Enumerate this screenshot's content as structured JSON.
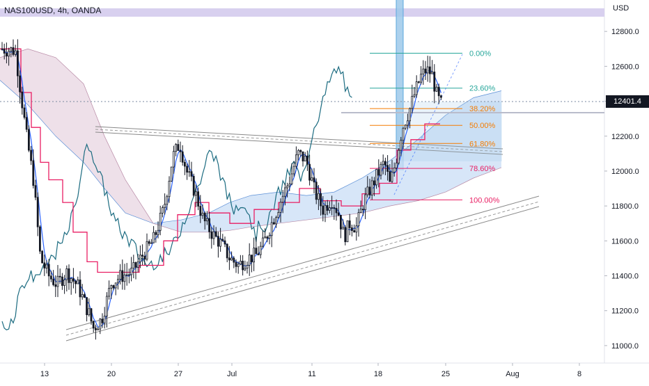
{
  "chart_data": {
    "type": "candlestick",
    "title": "NAS100USD, 4h, OANDA",
    "y_unit": "USD",
    "last_price": "12401.4",
    "ylim": [
      10900,
      12980
    ],
    "y_ticks": [
      "12800.0",
      "12600.0",
      "12400.0",
      "12200.0",
      "12000.0",
      "11800.0",
      "11600.0",
      "11400.0",
      "11200.0",
      "11000.0"
    ],
    "x_ticks": [
      "13",
      "20",
      "27",
      "Jul",
      "11",
      "18",
      "25",
      "Aug",
      "8"
    ],
    "fib_levels": [
      {
        "label": "0.00%",
        "value": 12675,
        "color": "#26a69a"
      },
      {
        "label": "23.60%",
        "value": 12475,
        "color": "#26a69a"
      },
      {
        "label": "38.20%",
        "value": 12358,
        "color": "#f57c00"
      },
      {
        "label": "50.00%",
        "value": 12262,
        "color": "#f57c00"
      },
      {
        "label": "61.80%",
        "value": 12158,
        "color": "#f57c00"
      },
      {
        "label": "78.60%",
        "value": 12015,
        "color": "#e91e63"
      },
      {
        "label": "100.00%",
        "value": 11835,
        "color": "#e91e63"
      }
    ],
    "colors": {
      "candle": "#131722",
      "tenkan": "#2962ff",
      "kijun": "#e91e63",
      "chikou": "#1b6b80",
      "cloud_bull": "#c9ddf6",
      "cloud_bear": "#e8d6e2",
      "fib_line": "#26a69a",
      "channel": "#888888",
      "highlight_band": "#d8d0ef",
      "vertical_band": "#9ec9ea"
    }
  }
}
